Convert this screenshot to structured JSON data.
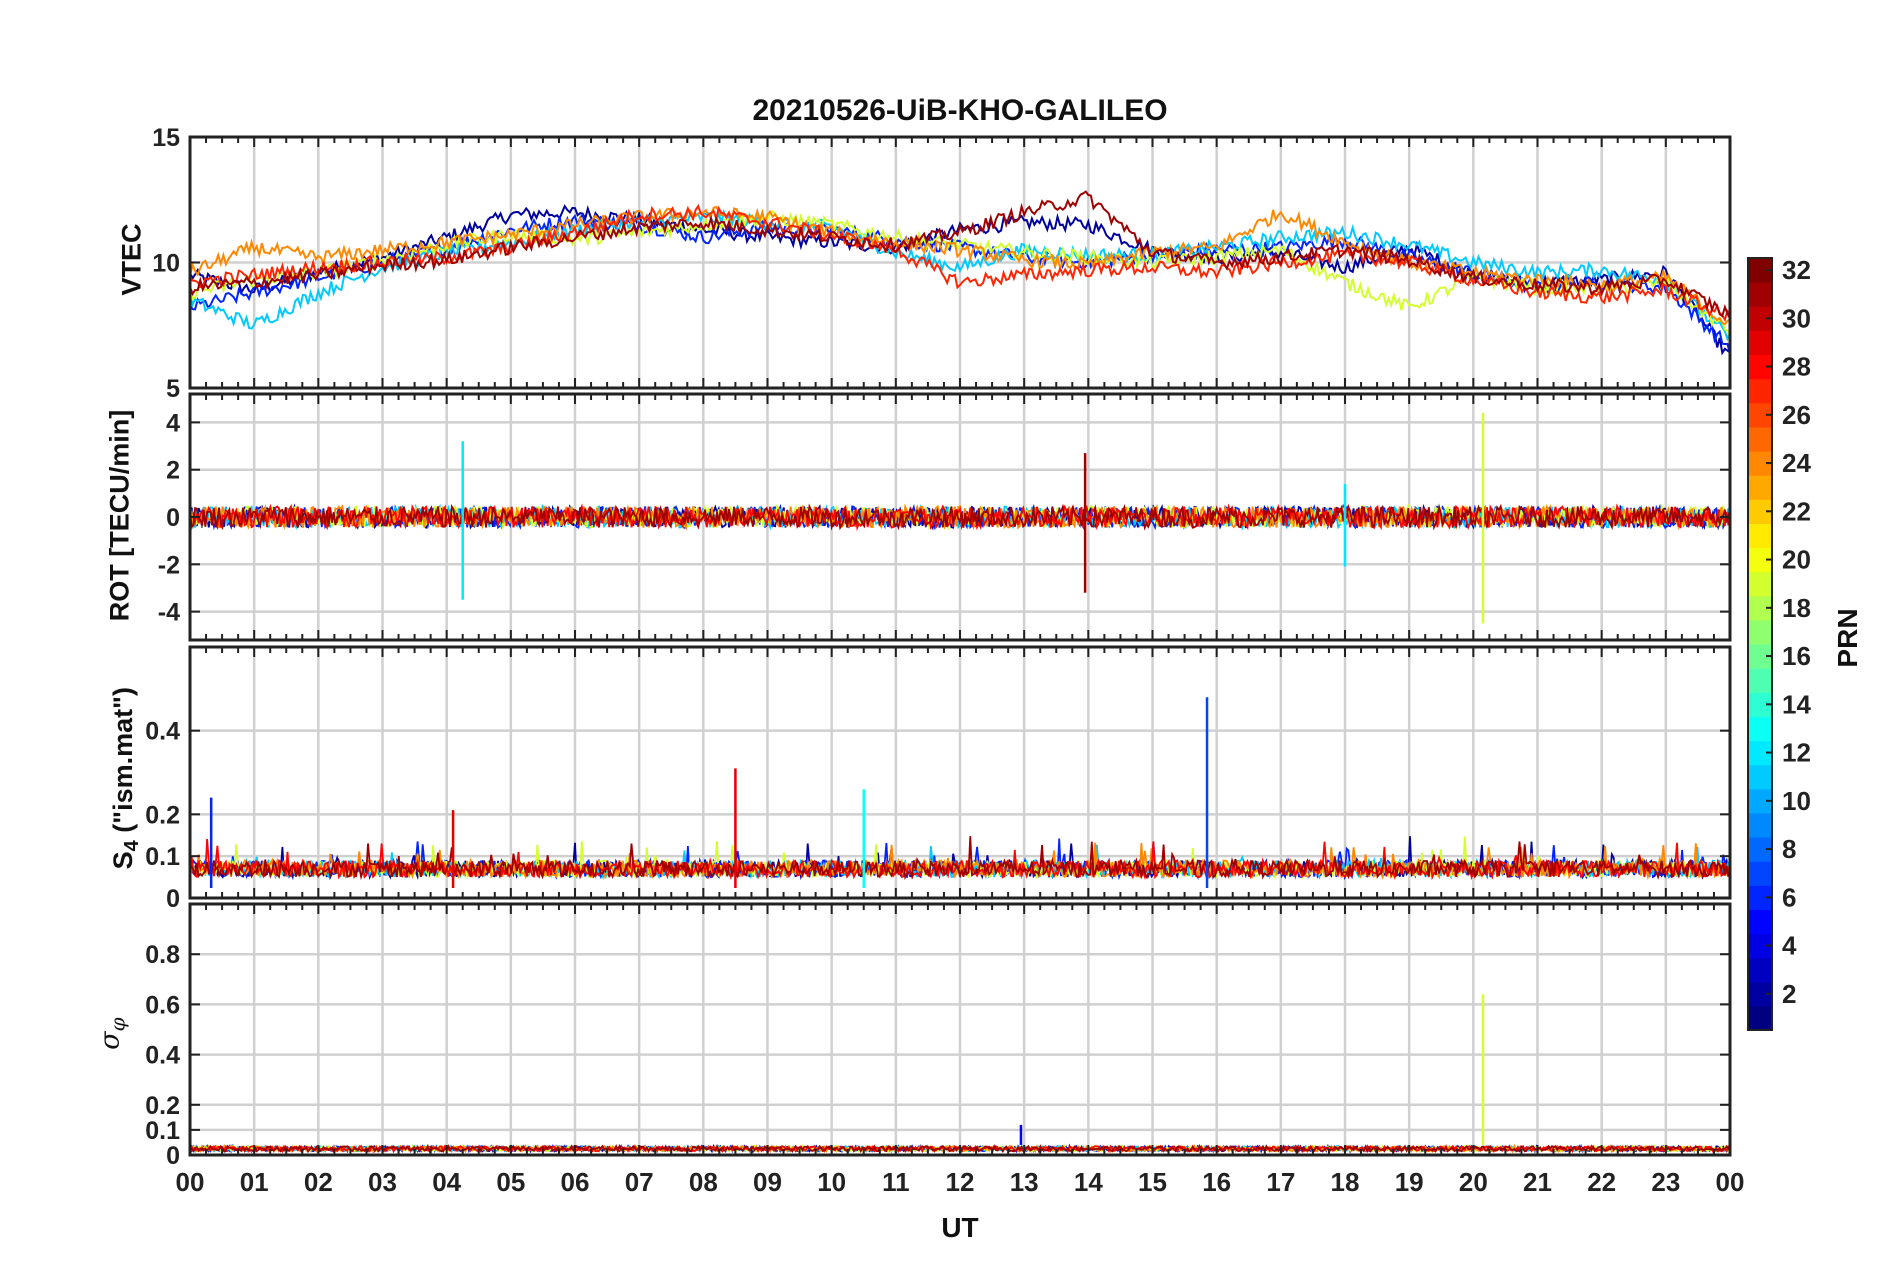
{
  "chart_data": {
    "type": "line",
    "title": "20210526-UiB-KHO-GALILEO",
    "xlabel": "UT",
    "x_ticks": [
      "00",
      "01",
      "02",
      "03",
      "04",
      "05",
      "06",
      "07",
      "08",
      "09",
      "10",
      "11",
      "12",
      "13",
      "14",
      "15",
      "16",
      "17",
      "18",
      "19",
      "20",
      "21",
      "22",
      "23",
      "00"
    ],
    "x_range_hours": [
      0,
      24
    ],
    "colorbar": {
      "label": "PRN",
      "range": [
        1,
        32
      ],
      "ticks": [
        2,
        4,
        6,
        8,
        10,
        12,
        14,
        16,
        18,
        20,
        22,
        24,
        26,
        28,
        30,
        32
      ],
      "colormap": "jet"
    },
    "panels": [
      {
        "id": "vtec",
        "ylabel": "VTEC",
        "ylim": [
          5,
          15
        ],
        "yticks": [
          5,
          10,
          15
        ],
        "grid": true,
        "series": [
          {
            "prn": 2,
            "x": [
              0,
              1,
              2,
              3,
              4,
              5,
              6,
              7,
              8,
              9,
              10,
              11,
              12,
              13,
              14,
              15,
              16,
              17,
              18,
              19,
              20,
              21,
              22,
              23,
              24
            ],
            "values": [
              9.5,
              8.9,
              9.6,
              10.2,
              11.0,
              11.9,
              12.0,
              11.7,
              11.3,
              11.0,
              10.8,
              10.6,
              11.3,
              11.6,
              11.5,
              10.5,
              10.2,
              10.4,
              9.8,
              10.6,
              9.5,
              9.2,
              9.3,
              9.6,
              6.2
            ]
          },
          {
            "prn": 6,
            "x": [
              0,
              1,
              2,
              3,
              4,
              5,
              6,
              7,
              8,
              9,
              10,
              11,
              12,
              13,
              14,
              15,
              16,
              17,
              18,
              19,
              20,
              21,
              22,
              23,
              24
            ],
            "values": [
              8.2,
              8.8,
              9.4,
              10.0,
              10.6,
              11.3,
              11.7,
              11.5,
              11.0,
              11.4,
              11.3,
              10.9,
              10.6,
              10.2,
              10.0,
              10.3,
              10.5,
              10.6,
              10.9,
              10.2,
              9.6,
              9.0,
              9.2,
              9.0,
              6.6
            ]
          },
          {
            "prn": 11,
            "x": [
              0,
              1,
              2,
              3,
              4,
              5,
              6,
              7,
              8,
              9,
              10,
              11,
              12,
              13,
              14,
              15,
              16,
              17,
              18,
              19,
              20,
              21,
              22,
              23,
              24
            ],
            "values": [
              8.5,
              7.5,
              8.8,
              9.8,
              10.4,
              10.8,
              11.3,
              11.6,
              11.8,
              11.6,
              11.4,
              10.4,
              9.8,
              10.5,
              10.3,
              10.3,
              10.6,
              11.0,
              11.2,
              10.7,
              10.0,
              9.6,
              9.7,
              9.3,
              7.0
            ]
          },
          {
            "prn": 19,
            "x": [
              0,
              1,
              2,
              3,
              4,
              5,
              6,
              7,
              8,
              9,
              10,
              11,
              12,
              13,
              14,
              15,
              16,
              17,
              18,
              19,
              20,
              21,
              22,
              23,
              24
            ],
            "values": [
              8.8,
              9.3,
              9.6,
              10.1,
              10.7,
              11.1,
              10.9,
              11.2,
              11.5,
              11.8,
              11.5,
              11.0,
              10.7,
              10.4,
              10.2,
              10.0,
              10.2,
              10.5,
              9.2,
              8.2,
              9.4,
              9.0,
              8.9,
              9.2,
              7.2
            ]
          },
          {
            "prn": 24,
            "x": [
              0,
              1,
              2,
              3,
              4,
              5,
              6,
              7,
              8,
              9,
              10,
              11,
              12,
              13,
              14,
              15,
              16,
              17,
              18,
              19,
              20,
              21,
              22,
              23,
              24
            ],
            "values": [
              9.6,
              10.6,
              10.2,
              10.5,
              10.8,
              11.1,
              11.5,
              11.8,
              12.0,
              11.8,
              11.2,
              10.8,
              10.5,
              10.1,
              9.9,
              10.4,
              10.6,
              12.0,
              10.8,
              10.0,
              9.6,
              9.3,
              9.1,
              9.4,
              7.5
            ]
          },
          {
            "prn": 27,
            "x": [
              0,
              1,
              2,
              3,
              4,
              5,
              6,
              7,
              8,
              9,
              10,
              11,
              12,
              13,
              14,
              15,
              16,
              17,
              18,
              19,
              20,
              21,
              22,
              23,
              24
            ],
            "values": [
              9.2,
              9.5,
              9.8,
              10.0,
              10.2,
              10.6,
              11.2,
              11.9,
              12.0,
              11.6,
              11.1,
              10.5,
              9.2,
              9.5,
              9.7,
              9.8,
              9.6,
              10.0,
              10.3,
              10.0,
              9.3,
              8.8,
              8.6,
              8.9,
              7.8
            ]
          },
          {
            "prn": 31,
            "x": [
              0,
              1,
              2,
              3,
              4,
              5,
              6,
              7,
              8,
              9,
              10,
              11,
              12,
              13,
              14,
              15,
              16,
              17,
              18,
              19,
              20,
              21,
              22,
              23,
              24
            ],
            "values": [
              9.0,
              9.2,
              9.5,
              9.9,
              10.1,
              10.6,
              11.0,
              11.4,
              11.6,
              11.3,
              11.0,
              10.7,
              11.2,
              12.0,
              12.6,
              10.4,
              10.0,
              10.2,
              10.5,
              10.1,
              9.4,
              9.1,
              9.0,
              9.3,
              7.9
            ]
          }
        ]
      },
      {
        "id": "rot",
        "ylabel": "ROT [TECU/min]",
        "ylim": [
          -5.2,
          5.2
        ],
        "yticks": [
          -4,
          -2,
          0,
          2,
          4
        ],
        "grid": true,
        "events": [
          {
            "hour": 4.25,
            "prn": 12,
            "min": -3.5,
            "max": 3.2
          },
          {
            "hour": 13.95,
            "prn": 31,
            "min": -3.2,
            "max": 2.7
          },
          {
            "hour": 18.0,
            "prn": 12,
            "min": -2.1,
            "max": 1.4
          },
          {
            "hour": 20.15,
            "prn": 19,
            "min": -4.5,
            "max": 4.4
          }
        ]
      },
      {
        "id": "s4",
        "ylabel": "S4 (\"ism.mat\")",
        "ylabel_main": "S",
        "ylabel_sub": "4",
        "ylabel_rest": " (\"ism.mat\")",
        "ylim": [
          0,
          0.6
        ],
        "yticks": [
          0,
          0.1,
          0.2,
          0.4
        ],
        "grid": true,
        "events": [
          {
            "hour": 0.33,
            "prn": 6,
            "peak": 0.24
          },
          {
            "hour": 4.1,
            "prn": 29,
            "peak": 0.21
          },
          {
            "hour": 8.5,
            "prn": 29,
            "peak": 0.31
          },
          {
            "hour": 10.5,
            "prn": 13,
            "peak": 0.26
          },
          {
            "hour": 15.85,
            "prn": 7,
            "peak": 0.48
          }
        ]
      },
      {
        "id": "sigma_phi",
        "ylabel": "σφ",
        "ylabel_main": "σ",
        "ylabel_sub": "φ",
        "ylim": [
          0,
          1.0
        ],
        "yticks": [
          0,
          0.1,
          0.2,
          0.4,
          0.6,
          0.8
        ],
        "grid": true,
        "events": [
          {
            "hour": 12.95,
            "prn": 5,
            "peak": 0.12
          },
          {
            "hour": 20.15,
            "prn": 19,
            "peak": 0.64
          }
        ]
      }
    ]
  }
}
